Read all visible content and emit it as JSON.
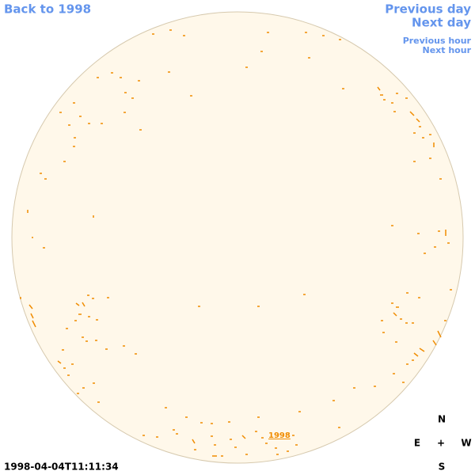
{
  "nav": {
    "back": "Back to 1998",
    "previous_day": "Previous day",
    "next_day": "Next day",
    "previous_hour": "Previous hour",
    "next_hour": "Next hour"
  },
  "disk_label": "1998",
  "timestamp": "1998-04-04T11:11:34",
  "compass": {
    "north": "N",
    "east": "E",
    "center": "+",
    "west": "W",
    "south": "S"
  }
}
